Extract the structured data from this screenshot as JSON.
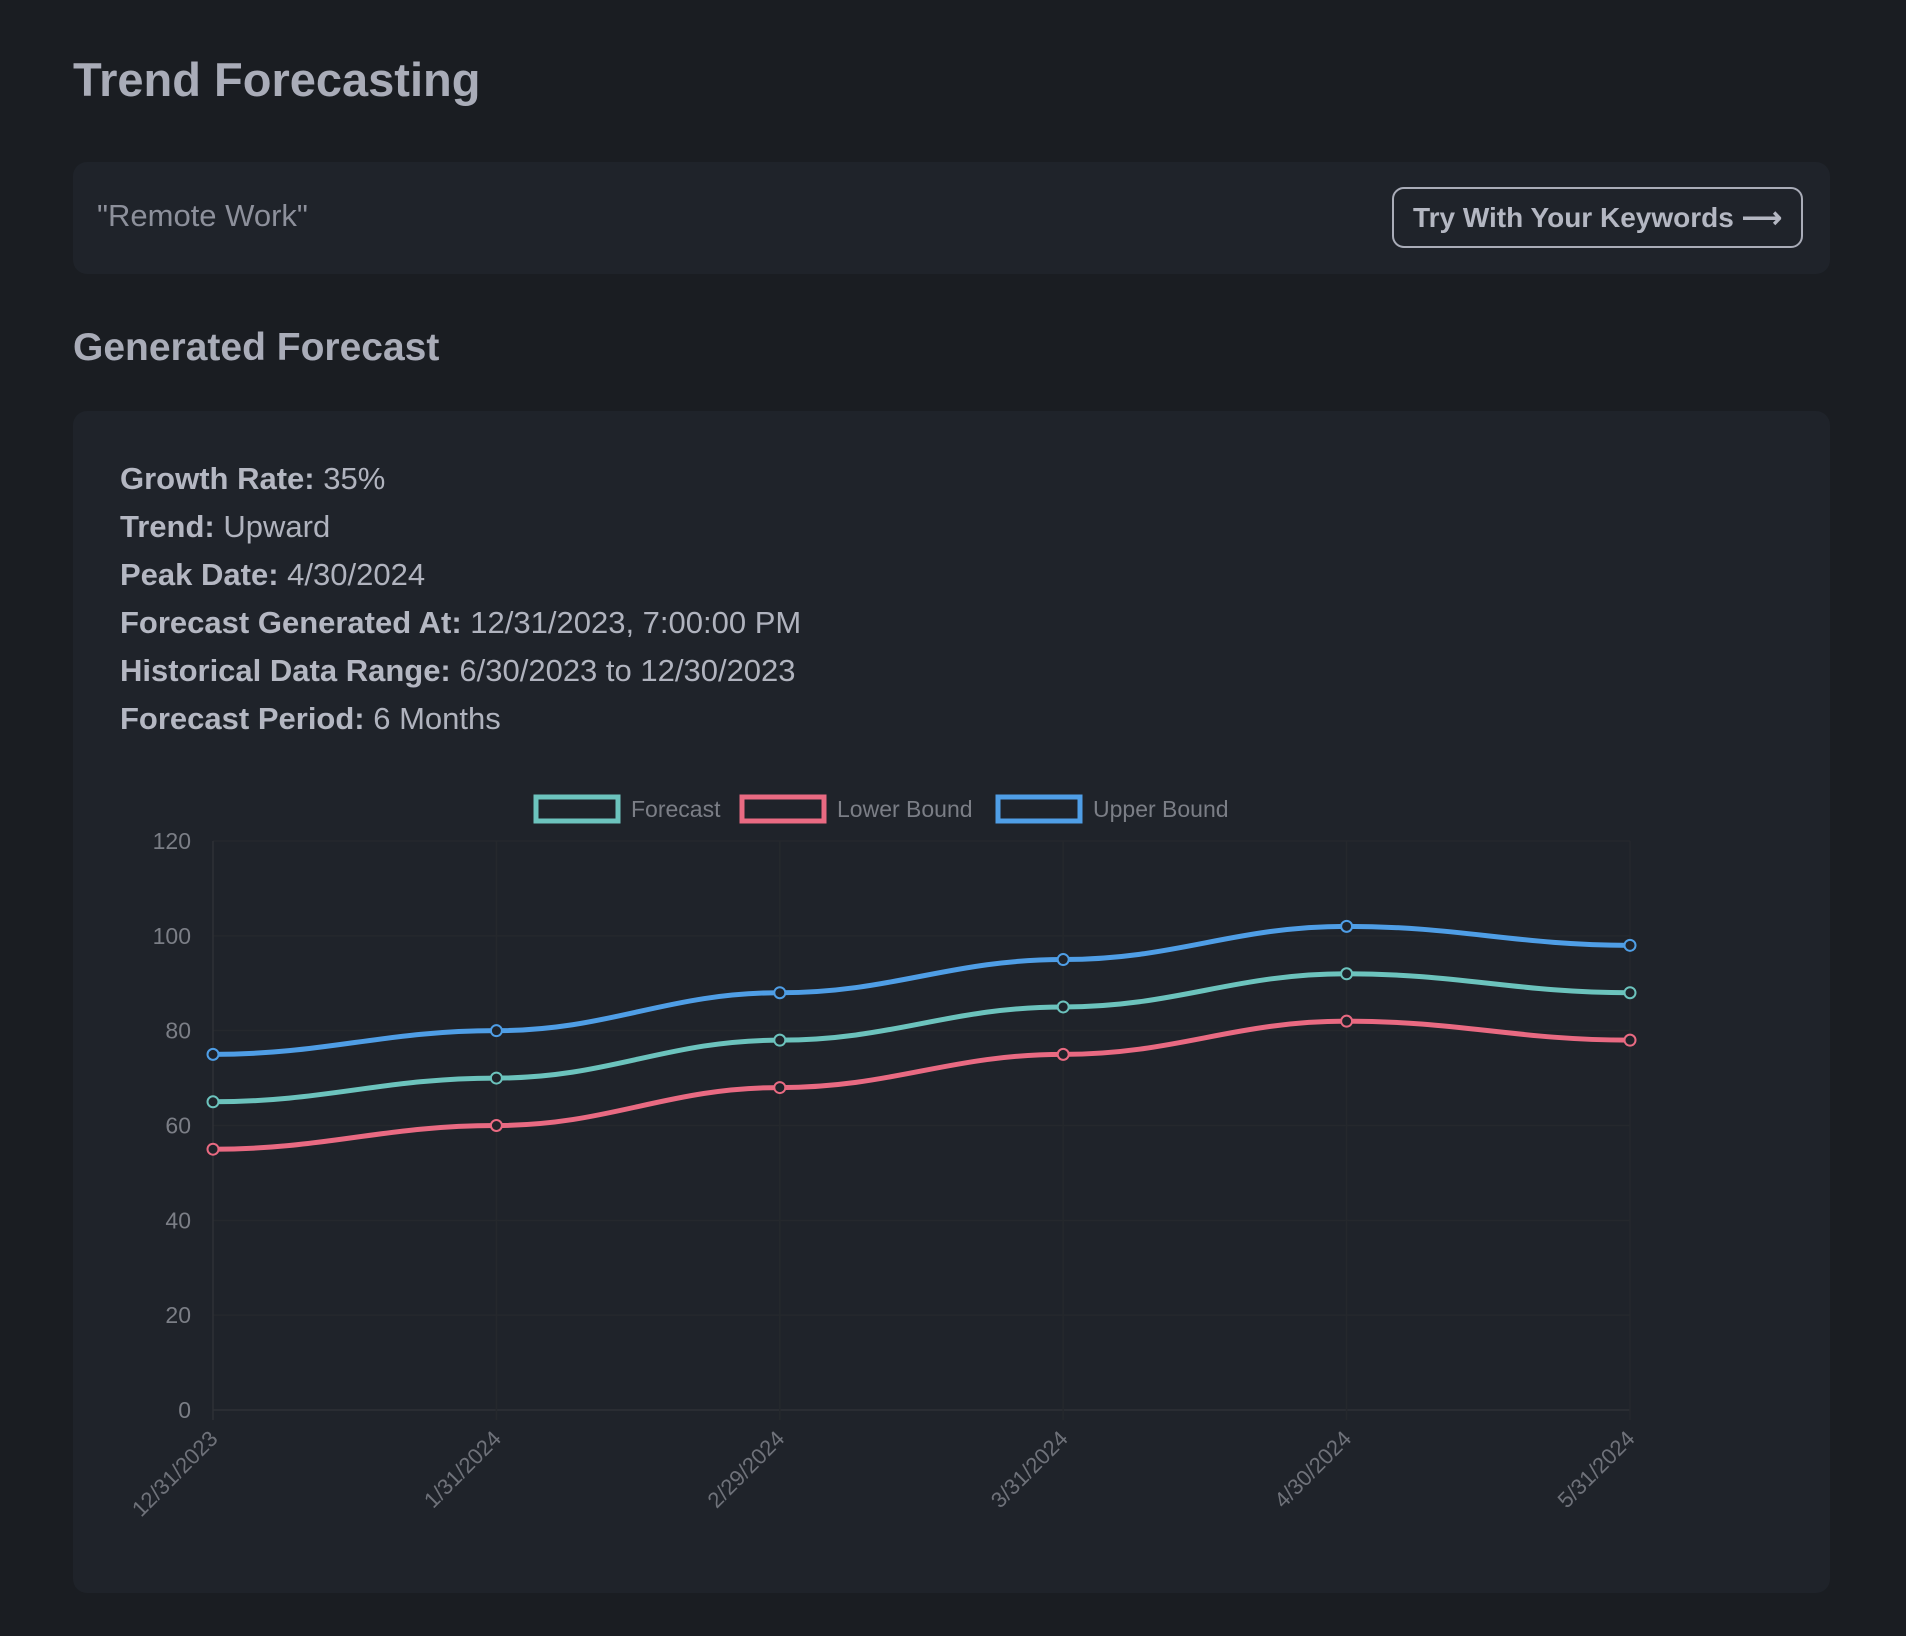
{
  "header": {
    "title": "Trend Forecasting"
  },
  "keyword_card": {
    "keyword": "\"Remote Work\"",
    "button_label": "Try With Your Keywords",
    "button_icon": "arrow-right-icon",
    "arrow": "⟶"
  },
  "section_title": "Generated Forecast",
  "details": [
    {
      "label": "Growth Rate:",
      "value": "35%"
    },
    {
      "label": "Trend:",
      "value": "Upward"
    },
    {
      "label": "Peak Date:",
      "value": "4/30/2024"
    },
    {
      "label": "Forecast Generated At:",
      "value": "12/31/2023, 7:00:00 PM"
    },
    {
      "label": "Historical Data Range:",
      "value": "6/30/2023 to 12/30/2023"
    },
    {
      "label": "Forecast Period:",
      "value": "6 Months"
    }
  ],
  "chart_data": {
    "type": "line",
    "title": "",
    "xlabel": "",
    "ylabel": "",
    "x": [
      "12/31/2023",
      "1/31/2024",
      "2/29/2024",
      "3/31/2024",
      "4/30/2024",
      "5/31/2024"
    ],
    "ylim": [
      0,
      120
    ],
    "yticks": [
      0,
      20,
      40,
      60,
      80,
      100,
      120
    ],
    "grid": true,
    "legend_position": "top-center",
    "series": [
      {
        "name": "Forecast",
        "color": "#6cc3bd",
        "values": [
          65,
          70,
          78,
          85,
          92,
          88
        ]
      },
      {
        "name": "Lower Bound",
        "color": "#e96a82",
        "values": [
          55,
          60,
          68,
          75,
          82,
          78
        ]
      },
      {
        "name": "Upper Bound",
        "color": "#4f9ee6",
        "values": [
          75,
          80,
          88,
          95,
          102,
          98
        ]
      }
    ]
  }
}
